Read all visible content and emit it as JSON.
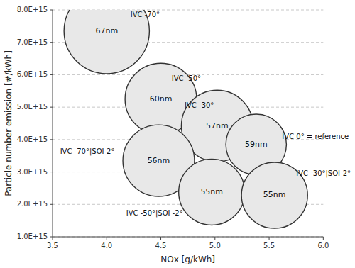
{
  "chart_data": {
    "type": "bubble",
    "x": [
      4.0,
      4.5,
      5.02,
      5.38,
      4.48,
      4.97,
      5.55
    ],
    "values": [
      7350000000000000.0,
      5250000000000000.0,
      4420000000000000.0,
      3850000000000000.0,
      3350000000000000.0,
      2380000000000000.0,
      2280000000000000.0
    ],
    "sizes": [
      62,
      52,
      52,
      44,
      52,
      48,
      48
    ],
    "labels": [
      "67nm",
      "60nm",
      "57nm",
      "59nm",
      "56nm",
      "55nm",
      "55nm"
    ],
    "color": "#e8e8e8",
    "annotations": [
      {
        "text": "IVC -70°",
        "x": 4.22,
        "y": 7850000000000000.0
      },
      {
        "text": "IVC -50°",
        "x": 4.6,
        "y": 5880000000000000.0
      },
      {
        "text": "IVC -30°",
        "x": 4.72,
        "y": 5050000000000000.0
      },
      {
        "text": "IVC 0° = reference",
        "x": 5.62,
        "y": 4080000000000000.0
      },
      {
        "text": "IVC -70°|SOI-2°",
        "x": 3.57,
        "y": 3620000000000000.0
      },
      {
        "text": "IVC -50°|SOI -2°",
        "x": 4.18,
        "y": 1720000000000000.0
      },
      {
        "text": "IVC -30°|SOI-2°",
        "x": 5.75,
        "y": 2950000000000000.0
      }
    ],
    "xlabel": "NOx [g/kWh]",
    "ylabel": "Particle number emission [#/kWh]",
    "xlim": [
      3.5,
      6.0
    ],
    "ylim": [
      1000000000000000.0,
      8000000000000000.0
    ],
    "xticks": [
      3.5,
      {
        "value": 4.0,
        "label": "4.0"
      },
      4.5,
      {
        "value": 5.0,
        "label": "5.0"
      },
      5.5,
      {
        "value": 6.0,
        "label": "6.0"
      }
    ],
    "yticks": [
      {
        "value": 1000000000000000.0,
        "label": "1.0E+15"
      },
      {
        "value": 2000000000000000.0,
        "label": "2.0E+15"
      },
      {
        "value": 3000000000000000.0,
        "label": "3.0E+15"
      },
      {
        "value": 4000000000000000.0,
        "label": "4.0E+15"
      },
      {
        "value": 5000000000000000.0,
        "label": "5.0E+15"
      },
      {
        "value": 6000000000000000.0,
        "label": "6.0E+15"
      },
      {
        "value": 7000000000000000.0,
        "label": "7.0E+15"
      },
      {
        "value": 8000000000000000.0,
        "label": "8.0E+15"
      }
    ],
    "grid": true
  }
}
